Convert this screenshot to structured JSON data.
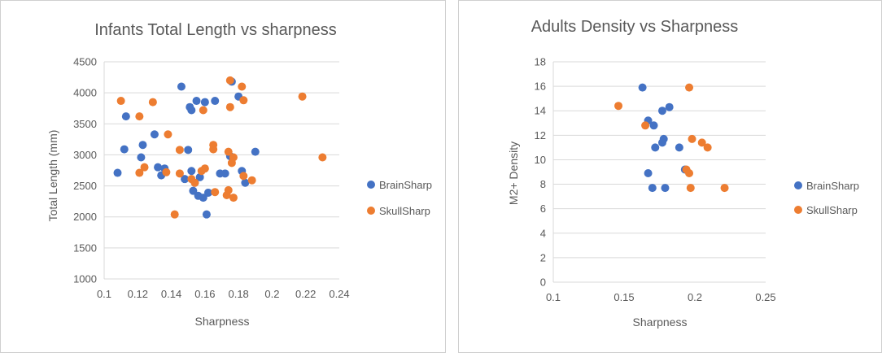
{
  "colors": {
    "BrainSharp": "#4472C4",
    "SkullSharp": "#ED7D31"
  },
  "chart_data": [
    {
      "type": "scatter",
      "title": "Infants Total Length vs  sharpness",
      "xlabel": "Sharpness",
      "ylabel": "Total Length (mm)",
      "xlim": [
        0.1,
        0.24
      ],
      "ylim": [
        1000,
        4500
      ],
      "xticks": [
        "0.1",
        "0.12",
        "0.14",
        "0.16",
        "0.18",
        "0.2",
        "0.22",
        "0.24"
      ],
      "yticks": [
        "1000",
        "1500",
        "2000",
        "2500",
        "3000",
        "3500",
        "4000",
        "4500"
      ],
      "grid": "horizontal",
      "legend": "right",
      "series": [
        {
          "name": "BrainSharp",
          "points": [
            [
              0.108,
              2710
            ],
            [
              0.112,
              3090
            ],
            [
              0.113,
              3620
            ],
            [
              0.122,
              2960
            ],
            [
              0.123,
              3160
            ],
            [
              0.13,
              3330
            ],
            [
              0.132,
              2800
            ],
            [
              0.134,
              2670
            ],
            [
              0.136,
              2780
            ],
            [
              0.146,
              4100
            ],
            [
              0.148,
              2610
            ],
            [
              0.15,
              3080
            ],
            [
              0.151,
              3770
            ],
            [
              0.152,
              3720
            ],
            [
              0.152,
              2740
            ],
            [
              0.153,
              2420
            ],
            [
              0.154,
              2550
            ],
            [
              0.155,
              3870
            ],
            [
              0.156,
              2340
            ],
            [
              0.157,
              2640
            ],
            [
              0.159,
              2310
            ],
            [
              0.16,
              3850
            ],
            [
              0.161,
              2040
            ],
            [
              0.162,
              2390
            ],
            [
              0.166,
              3870
            ],
            [
              0.169,
              2700
            ],
            [
              0.172,
              2700
            ],
            [
              0.175,
              2980
            ],
            [
              0.176,
              4180
            ],
            [
              0.18,
              3940
            ],
            [
              0.182,
              2740
            ],
            [
              0.184,
              2550
            ],
            [
              0.19,
              3050
            ]
          ]
        },
        {
          "name": "SkullSharp",
          "points": [
            [
              0.11,
              3870
            ],
            [
              0.121,
              3620
            ],
            [
              0.121,
              2710
            ],
            [
              0.124,
              2800
            ],
            [
              0.129,
              3850
            ],
            [
              0.137,
              2720
            ],
            [
              0.138,
              3330
            ],
            [
              0.142,
              2040
            ],
            [
              0.145,
              3080
            ],
            [
              0.145,
              2700
            ],
            [
              0.152,
              2610
            ],
            [
              0.154,
              2550
            ],
            [
              0.158,
              2740
            ],
            [
              0.159,
              3720
            ],
            [
              0.16,
              2780
            ],
            [
              0.165,
              3160
            ],
            [
              0.165,
              3090
            ],
            [
              0.166,
              2400
            ],
            [
              0.173,
              2350
            ],
            [
              0.174,
              3050
            ],
            [
              0.174,
              2430
            ],
            [
              0.175,
              3770
            ],
            [
              0.175,
              4200
            ],
            [
              0.176,
              2870
            ],
            [
              0.177,
              2960
            ],
            [
              0.177,
              2310
            ],
            [
              0.182,
              4100
            ],
            [
              0.183,
              3880
            ],
            [
              0.183,
              2660
            ],
            [
              0.188,
              2590
            ],
            [
              0.218,
              3940
            ],
            [
              0.23,
              2960
            ]
          ]
        }
      ]
    },
    {
      "type": "scatter",
      "title": "Adults Density vs  Sharpness",
      "xlabel": "Sharpness",
      "ylabel": "M2+ Density",
      "xlim": [
        0.1,
        0.25
      ],
      "ylim": [
        0,
        18
      ],
      "xticks": [
        "0.1",
        "0.15",
        "0.2",
        "0.25"
      ],
      "yticks": [
        "0",
        "2",
        "4",
        "6",
        "8",
        "10",
        "12",
        "14",
        "16",
        "18"
      ],
      "grid": "horizontal",
      "legend": "right",
      "series": [
        {
          "name": "BrainSharp",
          "points": [
            [
              0.163,
              15.9
            ],
            [
              0.167,
              13.2
            ],
            [
              0.167,
              8.9
            ],
            [
              0.17,
              7.7
            ],
            [
              0.171,
              12.8
            ],
            [
              0.172,
              11.0
            ],
            [
              0.177,
              11.4
            ],
            [
              0.177,
              14.0
            ],
            [
              0.178,
              11.7
            ],
            [
              0.179,
              7.7
            ],
            [
              0.182,
              14.3
            ],
            [
              0.189,
              11.0
            ],
            [
              0.193,
              9.2
            ]
          ]
        },
        {
          "name": "SkullSharp",
          "points": [
            [
              0.146,
              14.4
            ],
            [
              0.165,
              12.8
            ],
            [
              0.194,
              9.2
            ],
            [
              0.196,
              8.9
            ],
            [
              0.196,
              15.9
            ],
            [
              0.197,
              7.7
            ],
            [
              0.198,
              11.7
            ],
            [
              0.205,
              11.4
            ],
            [
              0.209,
              11.0
            ],
            [
              0.221,
              7.7
            ]
          ]
        }
      ]
    }
  ]
}
